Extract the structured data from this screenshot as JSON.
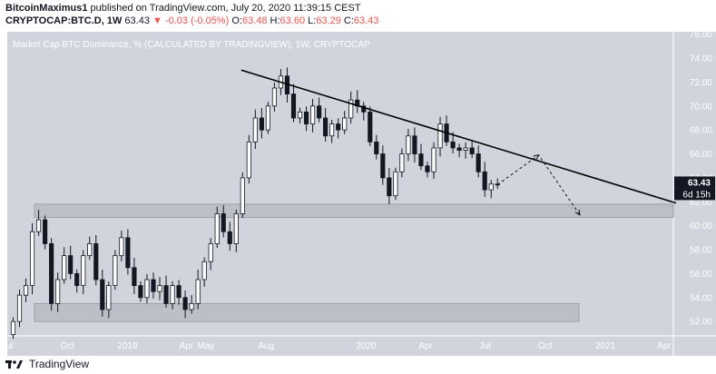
{
  "header": {
    "author": "BitcoinMaximus1",
    "published_text": "published on TradingView.com, July 20, 2020 11:39:15 CEST",
    "symbol": "CRYPTOCAP:BTC.D, 1W",
    "last": "63.43",
    "change": "▼ -0.03 (-0.05%)",
    "ohlc_o_label": "O:",
    "ohlc_o": "63.48",
    "ohlc_h_label": "H:",
    "ohlc_h": "63.60",
    "ohlc_l_label": "L:",
    "ohlc_l": "63.29",
    "ohlc_c_label": "C:",
    "ohlc_c": "63.43"
  },
  "footer": {
    "brand": "TradingView"
  },
  "colors": {
    "background": "#d1d4dc",
    "up": "#ffffff",
    "down": "#131722",
    "axis_text": "#ffffff",
    "price_tag": "#131722",
    "zone": "#bcbfc7"
  },
  "chart_data": {
    "type": "candlestick",
    "title": "Market Cap BTC Dominance, % (CALCULATED BY TRADINGVIEW), 1W, CRYPTOCAP",
    "y_ticks": [
      "52.00",
      "54.00",
      "56.00",
      "58.00",
      "60.00",
      "62.00",
      "64.00",
      "66.00",
      "68.00",
      "70.00",
      "72.00",
      "74.00",
      "76.00"
    ],
    "ylim": [
      50.8,
      76.2
    ],
    "x_ticks": [
      "Jul",
      "Oct",
      "2019",
      "Apr",
      "May",
      "Aug",
      "2020",
      "Apr",
      "Jul",
      "Oct",
      "2021",
      "Apr"
    ],
    "x_tick_dates": [
      "2018-07-01",
      "2018-10-01",
      "2019-01-01",
      "2019-04-01",
      "2019-05-01",
      "2019-08-01",
      "2020-01-01",
      "2020-04-01",
      "2020-07-01",
      "2020-10-01",
      "2021-01-01",
      "2021-04-01"
    ],
    "last_price_label": "63.43",
    "countdown_label": "6d 15h",
    "candles": [
      [
        50.9,
        52.0
      ],
      [
        52.0,
        54.2
      ],
      [
        54.2,
        55.0
      ],
      [
        55.0,
        59.5
      ],
      [
        59.5,
        60.5
      ],
      [
        60.5,
        58.5
      ],
      [
        58.5,
        53.5
      ],
      [
        53.5,
        55.5
      ],
      [
        55.5,
        57.5
      ],
      [
        57.5,
        56.0
      ],
      [
        56.0,
        55.0
      ],
      [
        55.0,
        57.5
      ],
      [
        57.5,
        58.5
      ],
      [
        58.5,
        55.5
      ],
      [
        55.5,
        53.0
      ],
      [
        53.0,
        55.0
      ],
      [
        55.0,
        57.5
      ],
      [
        57.5,
        59.0
      ],
      [
        59.0,
        56.5
      ],
      [
        56.5,
        55.0
      ],
      [
        55.0,
        54.0
      ],
      [
        54.0,
        55.5
      ],
      [
        55.5,
        54.5
      ],
      [
        54.5,
        55.0
      ],
      [
        55.0,
        53.5
      ],
      [
        53.5,
        55.0
      ],
      [
        55.0,
        54.0
      ],
      [
        54.0,
        53.0
      ],
      [
        53.0,
        53.5
      ],
      [
        53.5,
        55.5
      ],
      [
        55.5,
        57.0
      ],
      [
        57.0,
        58.5
      ],
      [
        58.5,
        61.0
      ],
      [
        61.0,
        59.5
      ],
      [
        59.5,
        58.5
      ],
      [
        58.5,
        61.0
      ],
      [
        61.0,
        64.0
      ],
      [
        64.0,
        67.0
      ],
      [
        67.0,
        69.0
      ],
      [
        69.0,
        68.0
      ],
      [
        68.0,
        70.0
      ],
      [
        70.0,
        71.5
      ],
      [
        71.5,
        72.5
      ],
      [
        72.5,
        71.0
      ],
      [
        71.0,
        69.0
      ],
      [
        69.0,
        69.5
      ],
      [
        69.5,
        68.5
      ],
      [
        68.5,
        70.0
      ],
      [
        70.0,
        69.0
      ],
      [
        69.0,
        67.5
      ],
      [
        67.5,
        68.5
      ],
      [
        68.5,
        68.0
      ],
      [
        68.0,
        69.0
      ],
      [
        69.0,
        70.5
      ],
      [
        70.5,
        70.0
      ],
      [
        70.0,
        69.5
      ],
      [
        69.5,
        67.0
      ],
      [
        67.0,
        66.0
      ],
      [
        66.0,
        64.0
      ],
      [
        64.0,
        62.5
      ],
      [
        62.5,
        64.5
      ],
      [
        64.5,
        66.0
      ],
      [
        66.0,
        67.5
      ],
      [
        67.5,
        66.0
      ],
      [
        66.0,
        65.0
      ],
      [
        65.0,
        64.5
      ],
      [
        64.5,
        66.5
      ],
      [
        66.5,
        68.5
      ],
      [
        68.5,
        67.0
      ],
      [
        67.0,
        66.5
      ],
      [
        66.5,
        66.3
      ],
      [
        66.3,
        66.5
      ],
      [
        66.5,
        66.0
      ],
      [
        66.0,
        64.5
      ],
      [
        64.5,
        63.0
      ],
      [
        63.0,
        63.48
      ],
      [
        63.48,
        63.43
      ]
    ],
    "x": [
      "2018-07-01",
      "2018-10-01",
      "2019-01-01",
      "2019-04-01",
      "2019-05-01",
      "2019-08-01",
      "2020-01-01",
      "2020-04-01",
      "2020-07-01"
    ],
    "trendline": {
      "from": [
        "2019-06-24",
        73.0
      ],
      "to": [
        "2021-04-19",
        61.9
      ]
    },
    "projection": [
      [
        "2020-07-20",
        63.43
      ],
      [
        "2020-09-21",
        65.9
      ],
      [
        "2020-11-23",
        60.9
      ]
    ],
    "support_zones": [
      [
        60.7,
        61.8
      ],
      [
        52.0,
        53.5
      ]
    ],
    "grid": false,
    "legend": "none"
  }
}
